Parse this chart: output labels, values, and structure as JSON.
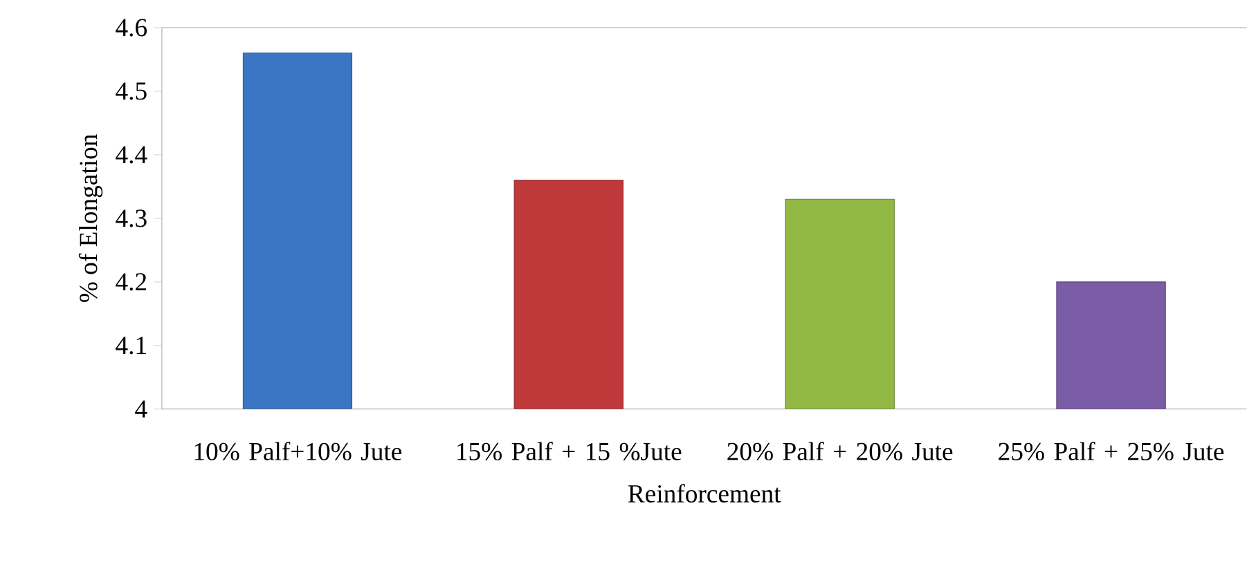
{
  "chart_data": {
    "type": "bar",
    "xlabel": "Reinforcement",
    "ylabel": "% of Elongation",
    "categories": [
      "10% Palf+10% Jute",
      "15% Palf + 15 %Jute",
      "20% Palf + 20% Jute",
      "25% Palf + 25% Jute"
    ],
    "values": [
      4.56,
      4.36,
      4.33,
      4.2
    ],
    "colors": [
      "#3a76c4",
      "#c0393a",
      "#92b844",
      "#7b5ca6"
    ],
    "ylim": [
      4,
      4.6
    ],
    "yticks": [
      4,
      4.1,
      4.2,
      4.3,
      4.4,
      4.5,
      4.6
    ],
    "grid": false
  }
}
